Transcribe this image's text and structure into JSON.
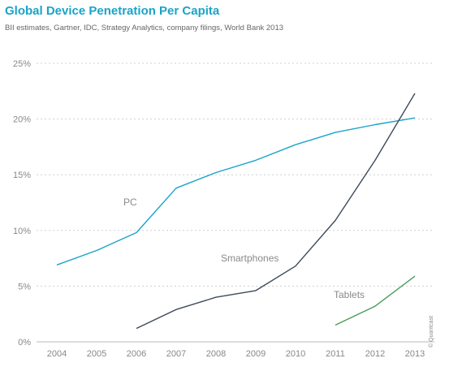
{
  "header": {
    "title": "Global Device Penetration Per Capita",
    "subtitle": "BII estimates, Gartner, IDC, Strategy Analytics, company filings, World Bank 2013"
  },
  "watermark": "© Quantcast",
  "chart_data": {
    "type": "line",
    "title": "Global Device Penetration Per Capita",
    "subtitle": "BII estimates, Gartner, IDC, Strategy Analytics, company filings, World Bank 2013",
    "xlabel": "",
    "ylabel": "",
    "x": [
      2004,
      2005,
      2006,
      2007,
      2008,
      2009,
      2010,
      2011,
      2012,
      2013
    ],
    "x_tick_labels": [
      "2004",
      "2005",
      "2006",
      "2007",
      "2008",
      "2009",
      "2010",
      "2011",
      "2012",
      "2013"
    ],
    "y_tick_labels": [
      "0%",
      "5%",
      "10%",
      "15%",
      "20%",
      "25%"
    ],
    "y_ticks": [
      0,
      5,
      10,
      15,
      20,
      25
    ],
    "ylim": [
      0,
      25
    ],
    "grid": true,
    "legend": "inline labels",
    "series": [
      {
        "name": "PC",
        "color": "#1aa3c8",
        "points": [
          [
            2004,
            6.9
          ],
          [
            2005,
            8.2
          ],
          [
            2006,
            9.8
          ],
          [
            2007,
            13.8
          ],
          [
            2008,
            15.2
          ],
          [
            2009,
            16.3
          ],
          [
            2010,
            17.7
          ],
          [
            2011,
            18.8
          ],
          [
            2012,
            19.5
          ],
          [
            2013,
            20.1
          ]
        ]
      },
      {
        "name": "Smartphones",
        "color": "#3d4a5c",
        "points": [
          [
            2006,
            1.2
          ],
          [
            2007,
            2.9
          ],
          [
            2008,
            4.0
          ],
          [
            2009,
            4.6
          ],
          [
            2010,
            6.8
          ],
          [
            2011,
            10.9
          ],
          [
            2012,
            16.3
          ],
          [
            2013,
            22.3
          ]
        ]
      },
      {
        "name": "Tablets",
        "color": "#4d9a5a",
        "points": [
          [
            2011,
            1.5
          ],
          [
            2012,
            3.2
          ],
          [
            2013,
            5.9
          ]
        ]
      }
    ]
  }
}
